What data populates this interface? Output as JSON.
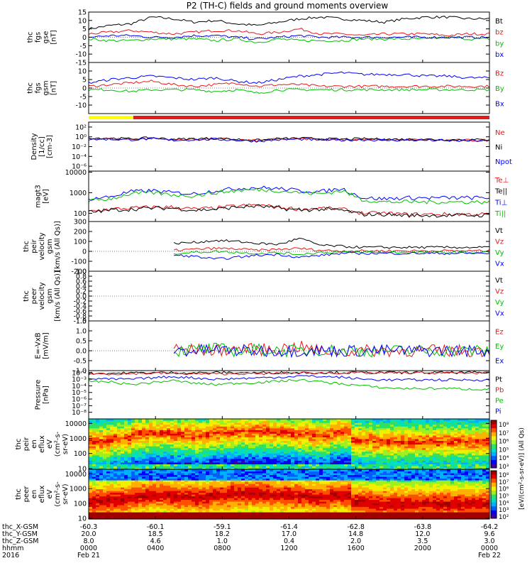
{
  "title": "P2 (TH-C) fields and ground moments overview",
  "colors": {
    "black": "#000000",
    "red": "#e41a1c",
    "green": "#00c000",
    "blue": "#0000ff",
    "yellow": "#ffff00",
    "orange": "#ff9900"
  },
  "chart_data": [
    {
      "id": "fgs",
      "type": "line",
      "ylabel": [
        "thc",
        "fgs",
        "gse",
        "[nT]"
      ],
      "ylim": [
        -15,
        15
      ],
      "ticks": [
        15,
        10,
        5,
        0,
        -5,
        -10,
        -15
      ],
      "tick_labels": [
        "15",
        "10",
        "5",
        "0",
        "-5",
        "-10",
        "-15"
      ],
      "series": [
        {
          "name": "Bt",
          "label": "Bt",
          "color": "#000000",
          "values": [
            5,
            7,
            8,
            12,
            11,
            9,
            10,
            8,
            7,
            9,
            11,
            12,
            11,
            10,
            9,
            11,
            12,
            12,
            11,
            11
          ]
        },
        {
          "name": "bz",
          "label": "bz",
          "color": "#e41a1c",
          "values": [
            2,
            3,
            4,
            3,
            2,
            3,
            4,
            4,
            2,
            3,
            5,
            2,
            2,
            1,
            2,
            2,
            2,
            1,
            2,
            2
          ]
        },
        {
          "name": "by",
          "label": "by",
          "color": "#00c000",
          "values": [
            -1,
            -2,
            -2,
            -1,
            -1,
            -1,
            -2,
            -1,
            -3,
            -1,
            -2,
            -2,
            -2,
            -1,
            -1,
            -1,
            -1,
            0,
            -1,
            -1
          ]
        },
        {
          "name": "bx",
          "label": "bx",
          "color": "#0000ff",
          "values": [
            0,
            1,
            1,
            0,
            0,
            1,
            1,
            0,
            -1,
            0,
            1,
            0,
            0,
            0,
            0,
            0,
            0,
            0,
            0,
            0
          ]
        }
      ]
    },
    {
      "id": "fgs_gsm",
      "type": "line",
      "ylabel": [
        "thc",
        "fgs",
        "gsm",
        "[nT]"
      ],
      "ylim": [
        -15,
        15
      ],
      "ticks": [
        10,
        5,
        0,
        -5,
        -10
      ],
      "tick_labels": [
        "10",
        "5",
        "0",
        "-5",
        "-10"
      ],
      "series": [
        {
          "name": "Bz",
          "label": "Bz",
          "color": "#e41a1c",
          "values": [
            1,
            2,
            3,
            4,
            2,
            1,
            2,
            3,
            1,
            2,
            2,
            1,
            1,
            1,
            1,
            1,
            1,
            1,
            1,
            1
          ]
        },
        {
          "name": "By",
          "label": "By",
          "color": "#00c000",
          "values": [
            -1,
            -1,
            -2,
            -1,
            -1,
            -1,
            -2,
            -1,
            -3,
            -1,
            -1,
            -1,
            -1,
            -1,
            -1,
            -1,
            -1,
            -1,
            -1,
            -1
          ]
        },
        {
          "name": "Bx",
          "label": "Bx",
          "color": "#0000ff",
          "values": [
            3,
            5,
            6,
            7,
            6,
            5,
            6,
            4,
            3,
            5,
            7,
            8,
            9,
            8,
            8,
            8,
            7,
            7,
            6,
            6
          ]
        }
      ]
    },
    {
      "id": "density",
      "type": "line",
      "log": true,
      "ylabel": [
        "Density",
        "[1/cc]",
        "[cm-3]"
      ],
      "ylim": [
        -7,
        3
      ],
      "ticks": [
        2,
        0,
        -2,
        -4,
        -6
      ],
      "tick_labels": [
        "10²",
        "10⁰",
        "10⁻²",
        "10⁻⁴",
        "10⁻⁶"
      ],
      "series": [
        {
          "name": "Ne",
          "label": "Ne",
          "color": "#e41a1c",
          "values": [
            -0.3,
            -0.4,
            -0.5,
            -0.3,
            -0.6,
            -0.5,
            -0.4,
            -0.6,
            -0.8,
            -0.5,
            -0.4,
            -0.5,
            -0.6,
            -0.5,
            -0.6,
            -0.6,
            -0.6,
            -0.7,
            -0.7,
            -0.7
          ]
        },
        {
          "name": "Ni",
          "label": "Ni",
          "color": "#000000",
          "values": [
            -0.2,
            -0.3,
            -0.4,
            -0.2,
            -0.5,
            -0.4,
            -0.3,
            -0.5,
            -0.7,
            -0.4,
            -0.3,
            -0.4,
            -0.5,
            -0.4,
            -0.5,
            -0.5,
            -0.5,
            -0.6,
            -0.6,
            -0.6
          ]
        },
        {
          "name": "Npot",
          "label": "Npot",
          "color": "#0000ff",
          "values": [
            -0.5,
            -0.5,
            -0.6,
            -0.4,
            -0.7,
            -0.6,
            -0.5,
            -0.7,
            -0.9,
            -0.6,
            -0.5,
            -0.6,
            -0.7,
            -0.6,
            -0.7,
            -0.7,
            -0.7,
            -0.8,
            -0.8,
            -0.8
          ]
        }
      ]
    },
    {
      "id": "temp",
      "type": "line",
      "log": true,
      "ylabel": [
        "magt3",
        "[eV]"
      ],
      "ylim": [
        1.6,
        4.05
      ],
      "ticks": [
        4,
        3,
        2
      ],
      "tick_labels": [
        "10000",
        "1000",
        "100"
      ],
      "series": [
        {
          "name": "Te⊥",
          "label": "Te⊥",
          "color": "#e41a1c",
          "values": [
            2.1,
            2.2,
            2.25,
            2.3,
            2.3,
            2.2,
            2.25,
            2.35,
            2.4,
            2.3,
            2.2,
            2.25,
            2.2,
            2.0,
            2.0,
            1.95,
            1.95,
            1.95,
            1.95,
            1.95
          ]
        },
        {
          "name": "Te||",
          "label": "Te||",
          "color": "#000000",
          "values": [
            2.05,
            2.15,
            2.2,
            2.25,
            2.25,
            2.15,
            2.2,
            2.3,
            2.35,
            2.25,
            2.15,
            2.2,
            2.15,
            1.95,
            1.95,
            1.9,
            1.9,
            1.9,
            1.9,
            1.9
          ]
        },
        {
          "name": "Ti⊥",
          "label": "Ti⊥",
          "color": "#0000ff",
          "values": [
            2.7,
            2.8,
            3.05,
            3.1,
            3.0,
            2.95,
            3.1,
            3.2,
            3.25,
            3.2,
            3.1,
            3.05,
            3.2,
            2.75,
            2.7,
            2.75,
            2.75,
            2.75,
            2.75,
            2.75
          ]
        },
        {
          "name": "Ti||",
          "label": "Ti||",
          "color": "#00c000",
          "values": [
            2.6,
            2.7,
            2.95,
            3.0,
            2.9,
            2.85,
            3.0,
            3.1,
            3.15,
            3.1,
            3.0,
            2.95,
            3.1,
            2.65,
            2.55,
            2.55,
            2.55,
            2.55,
            2.55,
            2.55
          ]
        }
      ]
    },
    {
      "id": "vel_i",
      "type": "line",
      "ylabel": [
        "thc",
        "peir",
        "velocity",
        "gsm",
        "[km/s (All Qs)]"
      ],
      "ylim": [
        -200,
        300
      ],
      "ticks": [
        300,
        200,
        100,
        0,
        -100,
        -200
      ],
      "tick_labels": [
        "300",
        "200",
        "100",
        "0",
        "-100",
        "-200"
      ],
      "series": [
        {
          "name": "Vt",
          "label": "Vt",
          "color": "#000000",
          "values": [
            null,
            null,
            null,
            null,
            80,
            90,
            110,
            100,
            80,
            70,
            130,
            60,
            50,
            40,
            40,
            40,
            40,
            40,
            40,
            40
          ]
        },
        {
          "name": "Vz",
          "label": "Vz",
          "color": "#e41a1c",
          "values": [
            null,
            null,
            null,
            null,
            10,
            20,
            30,
            25,
            10,
            20,
            30,
            10,
            5,
            5,
            5,
            5,
            5,
            5,
            5,
            5
          ]
        },
        {
          "name": "Vy",
          "label": "Vy",
          "color": "#00c000",
          "values": [
            null,
            null,
            null,
            null,
            -20,
            -10,
            0,
            -10,
            -20,
            -15,
            -30,
            -10,
            -10,
            -10,
            -10,
            -10,
            -10,
            -10,
            -10,
            -10
          ]
        },
        {
          "name": "Vx",
          "label": "Vx",
          "color": "#0000ff",
          "values": [
            null,
            null,
            null,
            null,
            -40,
            -50,
            -80,
            -60,
            -40,
            -30,
            -60,
            -40,
            -20,
            -20,
            -20,
            -20,
            -20,
            -20,
            -20,
            -20
          ]
        }
      ]
    },
    {
      "id": "vel_e",
      "type": "line",
      "ylabel": [
        "thc",
        "peer",
        "velocity",
        "gsm",
        "[km/s (All Qs)]"
      ],
      "ylim": [
        -1,
        1
      ],
      "ticks": [
        1,
        0.8,
        0.6,
        0.4,
        0.2,
        0,
        -0.2,
        -0.4,
        -0.6,
        -0.8,
        -1
      ],
      "tick_labels": [
        "1.0",
        "0.8",
        "0.6",
        "0.4",
        "0.2",
        "0.0",
        "-0.2",
        "-0.4",
        "-0.6",
        "-0.8",
        "-1.0"
      ],
      "series": [
        {
          "name": "Vt",
          "label": "Vt",
          "color": "#000000",
          "values": []
        },
        {
          "name": "Vz",
          "label": "Vz",
          "color": "#e41a1c",
          "values": []
        },
        {
          "name": "Vy",
          "label": "Vy",
          "color": "#00c000",
          "values": []
        },
        {
          "name": "Vx",
          "label": "Vx",
          "color": "#0000ff",
          "values": []
        }
      ]
    },
    {
      "id": "efield",
      "type": "line",
      "ylabel": [
        "E=-VxB",
        "[mV/m]"
      ],
      "ylim": [
        -1,
        1.5
      ],
      "ticks": [
        1.5,
        1,
        0.5,
        0,
        -0.5,
        -1
      ],
      "tick_labels": [
        "1.5",
        "1.0",
        "0.5",
        "0.0",
        "-0.5",
        "-1.0"
      ],
      "series": [
        {
          "name": "Ez",
          "label": "Ez",
          "color": "#e41a1c",
          "values": [
            null,
            null,
            null,
            null,
            0.1,
            0.05,
            0.0,
            0.1,
            0.05,
            0.1,
            0.2,
            0.0,
            0.0,
            0.0,
            0.0,
            0.0,
            0.0,
            0.0,
            0.0,
            0.0
          ]
        },
        {
          "name": "Ey",
          "label": "Ey",
          "color": "#00c000",
          "values": [
            null,
            null,
            null,
            null,
            0.0,
            0.05,
            0.1,
            0.0,
            0.05,
            0.0,
            0.0,
            0.05,
            0.0,
            0.0,
            0.0,
            0.0,
            0.0,
            0.0,
            0.0,
            0.0
          ]
        },
        {
          "name": "Ex",
          "label": "Ex",
          "color": "#0000ff",
          "values": [
            null,
            null,
            null,
            null,
            0.0,
            0.0,
            0.05,
            0.0,
            0.0,
            0.0,
            0.0,
            0.0,
            0.0,
            0.0,
            0.0,
            0.0,
            0.0,
            0.0,
            0.0,
            0.0
          ]
        }
      ]
    },
    {
      "id": "pressure",
      "type": "line",
      "log": true,
      "ylabel": [
        "Pressure",
        "[nPa]"
      ],
      "ylim": [
        -9,
        -1.7
      ],
      "ticks": [
        -2,
        -3,
        -4,
        -5,
        -6,
        -7,
        -8
      ],
      "tick_labels": [
        "10⁻²",
        "10⁻³",
        "10⁻⁴",
        "10⁻⁵",
        "10⁻⁶",
        "10⁻⁷",
        "10⁻⁸"
      ],
      "series": [
        {
          "name": "Pt",
          "label": "Pt",
          "color": "#000000",
          "values": [
            -2.1,
            -2.1,
            -2.05,
            -2.0,
            -2.0,
            -2.05,
            -2.0,
            -2.0,
            -2.05,
            -2.0,
            -2.0,
            -2.0,
            -2.0,
            -2.0,
            -2.0,
            -2.0,
            -2.0,
            -2.0,
            -2.0,
            -2.0
          ]
        },
        {
          "name": "Pb",
          "label": "Pb",
          "color": "#e41a1c",
          "values": [
            -2.2,
            -2.2,
            -2.15,
            -2.1,
            -2.1,
            -2.2,
            -2.2,
            -2.15,
            -2.2,
            -2.1,
            -2.05,
            -2.05,
            -2.05,
            -2.05,
            -2.05,
            -2.05,
            -2.05,
            -2.05,
            -2.05,
            -2.05
          ]
        },
        {
          "name": "Pe",
          "label": "Pe",
          "color": "#00c000",
          "values": [
            -3.3,
            -3.4,
            -3.8,
            -3.5,
            -3.2,
            -3.6,
            -3.8,
            -3.6,
            -3.5,
            -3.3,
            -3.1,
            -3.4,
            -3.7,
            -4.0,
            -4.3,
            -4.4,
            -4.4,
            -4.4,
            -4.5,
            -4.5
          ]
        },
        {
          "name": "Pi",
          "label": "Pi",
          "color": "#0000ff",
          "values": [
            -2.9,
            -3.0,
            -3.0,
            -2.8,
            -2.6,
            -2.8,
            -3.0,
            -2.9,
            -2.8,
            -2.7,
            -2.5,
            -2.6,
            -2.7,
            -3.0,
            -3.1,
            -3.1,
            -3.1,
            -3.1,
            -3.1,
            -3.1
          ]
        }
      ]
    },
    {
      "id": "peir_flux",
      "type": "heatmap",
      "ylabel": [
        "thc",
        "peir",
        "en",
        "eflux",
        "eV",
        "(cm²-s-",
        "sr-eV)"
      ],
      "log_y": true,
      "ylim": [
        0.95,
        4.3
      ],
      "ticks": [
        4,
        3,
        2,
        1
      ],
      "tick_labels": [
        "10000",
        "1000",
        "100",
        "10"
      ],
      "peak_log_energy": [
        2.8,
        3.0,
        3.3,
        3.4,
        3.3,
        3.2,
        3.4,
        3.5,
        3.5,
        3.4,
        3.3,
        3.2,
        3.5,
        2.9,
        2.8,
        2.8,
        2.8,
        2.8,
        2.8,
        2.8
      ]
    },
    {
      "id": "peer_flux",
      "type": "heatmap",
      "ylabel": [
        "thc",
        "peer",
        "en",
        "eflux",
        "eV",
        "(cm²-s-",
        "sr-eV)"
      ],
      "log_y": true,
      "ylim": [
        0.95,
        4.3
      ],
      "ticks": [
        4,
        3,
        2,
        1
      ],
      "tick_labels": [
        "10000",
        "1000",
        "100",
        "10"
      ],
      "peak_log_energy": [
        2.2,
        2.3,
        2.5,
        2.6,
        2.5,
        2.4,
        2.6,
        2.7,
        2.7,
        2.6,
        2.5,
        2.4,
        2.6,
        2.1,
        2.0,
        2.0,
        2.0,
        2.0,
        2.0,
        2.0
      ]
    }
  ],
  "colorbar": {
    "label": "[eV/(cm²-s-sr-eV)] (All Qs)",
    "tick_labels": [
      "10⁸",
      "10⁷",
      "10⁶",
      "10⁵",
      "10⁴",
      "10³"
    ]
  },
  "colorbar2": {
    "tick_labels": [
      "10⁸",
      "10⁷",
      "10⁶",
      "10⁵",
      "10⁴",
      "10³",
      "10²"
    ]
  },
  "xaxis": {
    "row_labels": [
      "thc_X-GSM",
      "thc_Y-GSM",
      "thc_Z-GSM",
      "hhmm",
      "2016"
    ],
    "columns": [
      {
        "x": "-60.3",
        "y": "20.0",
        "z": "8.0",
        "hhmm": "0000",
        "date": "Feb 21"
      },
      {
        "x": "-60.1",
        "y": "18.5",
        "z": "4.6",
        "hhmm": "0400",
        "date": ""
      },
      {
        "x": "-59.1",
        "y": "18.2",
        "z": "1.0",
        "hhmm": "0800",
        "date": ""
      },
      {
        "x": "-61.4",
        "y": "17.0",
        "z": "0.4",
        "hhmm": "1200",
        "date": ""
      },
      {
        "x": "-62.8",
        "y": "14.8",
        "z": "2.0",
        "hhmm": "1600",
        "date": ""
      },
      {
        "x": "-63.8",
        "y": "12.0",
        "z": "3.5",
        "hhmm": "2000",
        "date": ""
      },
      {
        "x": "-64.2",
        "y": "9.6",
        "z": "3.0",
        "hhmm": "0000",
        "date": "Feb 22"
      }
    ]
  }
}
